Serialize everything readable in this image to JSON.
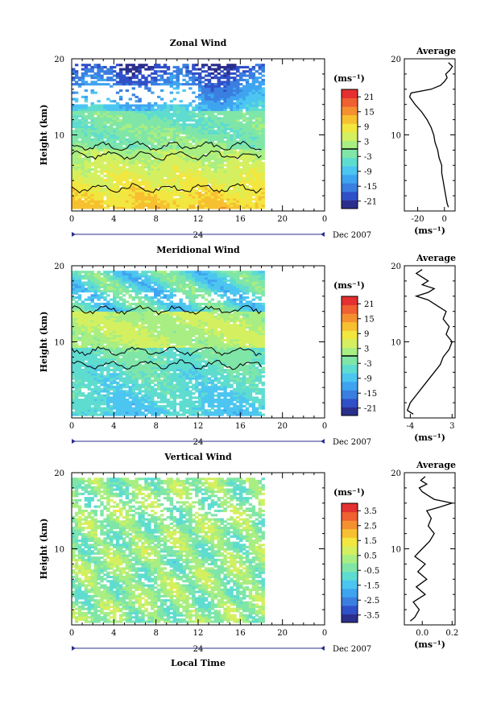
{
  "colors": {
    "colormap": [
      "#2b2f8c",
      "#3050c8",
      "#3a7fe0",
      "#3fa4f0",
      "#4cc6f0",
      "#5fdcd0",
      "#7fe6a8",
      "#a8ee82",
      "#d4f060",
      "#f2e640",
      "#f7c030",
      "#f59030",
      "#f06030",
      "#e43030"
    ],
    "contour": "#000000",
    "frame": "#000000",
    "date_axis": "#2b2f8c"
  },
  "chart_data": [
    {
      "type": "heatmap",
      "title": "Zonal Wind",
      "ylabel": "Height (km)",
      "xlabel": "",
      "xlim": [
        0,
        24
      ],
      "ylim": [
        0,
        20
      ],
      "x_ticks": [
        "0",
        "4",
        "8",
        "12",
        "16",
        "20",
        "0"
      ],
      "y_ticks": [
        "20",
        "10"
      ],
      "date_marker": "24",
      "date_label": "Dec 2007",
      "data_until_hour": 18.2,
      "colorbar": {
        "unit": "(ms⁻¹)",
        "ticks": [
          "21",
          "15",
          "9",
          "3",
          "-3",
          "-9",
          "-15",
          "-21"
        ],
        "range": [
          -24,
          24
        ],
        "contour_level": 0
      },
      "profile": {
        "title": "Average",
        "xlabel": "(ms⁻¹)",
        "x_ticks": [
          "-20",
          "0"
        ],
        "y_ticks": [
          "20",
          "10"
        ],
        "xlim": [
          -30,
          8
        ],
        "heights": [
          0.5,
          1,
          2,
          3,
          4,
          5,
          6,
          7,
          8,
          9,
          10,
          11,
          12,
          13,
          14,
          15,
          15.5,
          16,
          16.5,
          17,
          17.5,
          18,
          18.5,
          19,
          19.5
        ],
        "values": [
          3,
          2,
          1,
          0,
          -1,
          -2,
          -2,
          -4,
          -5,
          -7,
          -8,
          -10,
          -13,
          -17,
          -22,
          -26,
          -25,
          -10,
          -3,
          0,
          2,
          1,
          4,
          6,
          3
        ]
      }
    },
    {
      "type": "heatmap",
      "title": "Meridional Wind",
      "ylabel": "Height (km)",
      "xlabel": "",
      "xlim": [
        0,
        24
      ],
      "ylim": [
        0,
        20
      ],
      "x_ticks": [
        "0",
        "4",
        "8",
        "12",
        "16",
        "20",
        "0"
      ],
      "y_ticks": [
        "20",
        "10"
      ],
      "date_marker": "24",
      "date_label": "Dec 2007",
      "data_until_hour": 18.2,
      "colorbar": {
        "unit": "(ms⁻¹)",
        "ticks": [
          "21",
          "15",
          "9",
          "3",
          "-3",
          "-9",
          "-15",
          "-21"
        ],
        "range": [
          -24,
          24
        ],
        "contour_level": 0
      },
      "profile": {
        "title": "Average",
        "xlabel": "(ms⁻¹)",
        "x_ticks": [
          "-4",
          "3"
        ],
        "y_ticks": [
          "20",
          "10"
        ],
        "xlim": [
          -5,
          3.5
        ],
        "heights": [
          0.5,
          1,
          2,
          3,
          4,
          5,
          6,
          7,
          8,
          9,
          10,
          11,
          12,
          13,
          14,
          15,
          15.5,
          16,
          16.5,
          17,
          17.5,
          18,
          18.5,
          19,
          19.5
        ],
        "values": [
          -3.5,
          -4.5,
          -4,
          -3,
          -2,
          -1,
          0,
          1,
          1.5,
          2.5,
          3,
          2,
          2.5,
          1.5,
          2,
          0,
          -1,
          -3,
          -1,
          0,
          -2,
          -1,
          -2,
          -3,
          -2
        ]
      }
    },
    {
      "type": "heatmap",
      "title": "Vertical Wind",
      "ylabel": "Height (km)",
      "xlabel": "Local Time",
      "xlim": [
        0,
        24
      ],
      "ylim": [
        0,
        20
      ],
      "x_ticks": [
        "0",
        "4",
        "8",
        "12",
        "16",
        "20",
        "0"
      ],
      "y_ticks": [
        "20",
        "10"
      ],
      "date_marker": "24",
      "date_label": "Dec 2007",
      "data_until_hour": 18.2,
      "colorbar": {
        "unit": "(ms⁻¹)",
        "ticks": [
          "3.5",
          "2.5",
          "1.5",
          "0.5",
          "-0.5",
          "-1.5",
          "-2.5",
          "-3.5"
        ],
        "range": [
          -4,
          4
        ]
      },
      "profile": {
        "title": "Average",
        "xlabel": "(ms⁻¹)",
        "x_ticks": [
          "0.0",
          "0.2"
        ],
        "y_ticks": [
          "20",
          "10"
        ],
        "xlim": [
          -0.12,
          0.22
        ],
        "heights": [
          0.5,
          1,
          2,
          3,
          4,
          5,
          6,
          7,
          8,
          9,
          10,
          11,
          12,
          13,
          14,
          15,
          15.5,
          16,
          16.5,
          17,
          17.5,
          18,
          18.5,
          19,
          19.5
        ],
        "values": [
          -0.08,
          -0.05,
          -0.02,
          -0.06,
          0.02,
          -0.04,
          0.03,
          -0.03,
          0.02,
          -0.05,
          0.0,
          0.05,
          0.08,
          0.04,
          0.06,
          0.03,
          0.12,
          0.2,
          0.08,
          0.04,
          0.0,
          -0.02,
          0.03,
          -0.01,
          0.02
        ]
      }
    }
  ]
}
